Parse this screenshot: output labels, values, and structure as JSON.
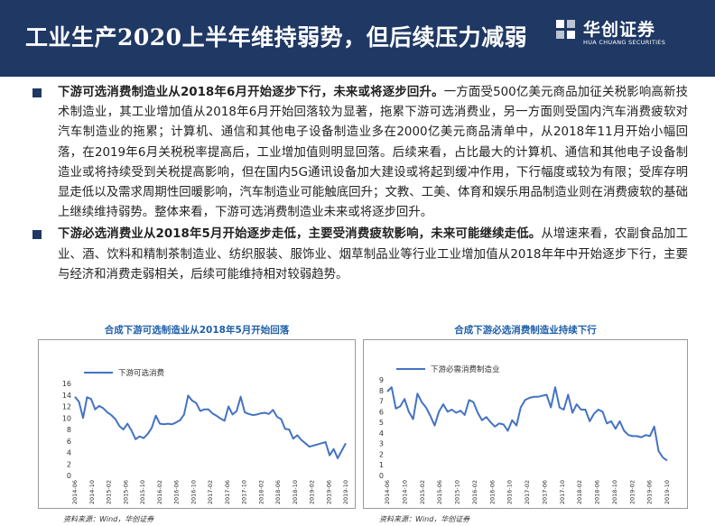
{
  "header": {
    "title": "工业生产2020上半年维持弱势，但后续压力减弱",
    "logo_cn": "华创证券",
    "logo_en": "HUA CHUANG SECURITIES",
    "background_color": "#1f3864"
  },
  "bullets": [
    {
      "bold": "下游可选消费制造业从2018年6月开始逐步下行，未来或将逐步回升。",
      "text": "一方面受500亿美元商品加征关税影响高新技术制造业，其工业增加值从2018年6月开始回落较为显著，拖累下游可选消费业，另一方面则受国内汽车消费疲软对汽车制造业的拖累；计算机、通信和其他电子设备制造业多在2000亿美元商品清单中，从2018年11月开始小幅回落，在2019年6月关税税率提高后，工业增加值则明显回落。后续来看，占比最大的计算机、通信和其他电子设备制造业或将持续受到关税提高影响，但在国内5G通讯设备加大建设或将起到缓冲作用，下行幅度或较为有限；受库存明显走低以及需求周期性回暖影响，汽车制造业可能触底回升；文教、工美、体育和娱乐用品制造业则在消费疲软的基础上继续维持弱势。整体来看，下游可选消费制造业未来或将逐步回升。"
    },
    {
      "bold": "下游必选消费业从2018年5月开始逐步走低，主要受消费疲软影响，未来可能继续走低。",
      "text": "从增速来看，农副食品加工业、酒、饮料和精制茶制造业、纺织服装、服饰业、烟草制品业等行业工业增加值从2018年年中开始逐步下行，主要与经济和消费走弱相关，后续可能维持相对较弱趋势。"
    }
  ],
  "chart_data": [
    {
      "type": "line",
      "title": "合成下游可选制造业从2018年5月开始回落",
      "series": [
        {
          "name": "下游可选消费",
          "color": "#4472c4",
          "values": [
            13.7,
            12.8,
            10.0,
            13.6,
            13.3,
            11.5,
            12.1,
            11.7,
            11.0,
            10.5,
            9.8,
            8.6,
            8.0,
            9.0,
            7.8,
            6.3,
            6.8,
            6.5,
            7.2,
            8.3,
            10.4,
            9.0,
            8.9,
            9.0,
            8.9,
            9.2,
            9.6,
            10.6,
            13.9,
            13.0,
            12.6,
            11.2,
            11.5,
            11.5,
            10.8,
            10.4,
            9.9,
            9.5,
            12.0,
            10.6,
            11.2,
            13.7,
            11.0,
            10.7,
            10.5,
            10.6,
            10.8,
            10.9,
            10.7,
            11.4,
            10.2,
            9.8,
            8.1,
            8.0,
            6.4,
            7.0,
            6.2,
            5.6,
            5.0,
            5.2,
            5.4,
            5.6,
            5.8,
            3.5,
            4.6,
            3.0,
            4.3,
            5.6
          ]
        }
      ],
      "x_ticks": [
        "2014-06",
        "2014-10",
        "2015-02",
        "2015-06",
        "2015-10",
        "2016-02",
        "2016-06",
        "2016-10",
        "2017-02",
        "2017-06",
        "2017-10",
        "2018-02",
        "2018-06",
        "2018-10",
        "2019-02",
        "2019-06",
        "2019-10"
      ],
      "y_ticks": [
        "0",
        "2",
        "4",
        "6",
        "8",
        "10",
        "12",
        "14",
        "16"
      ],
      "ylim": [
        0,
        16
      ],
      "xlabel": "",
      "ylabel": "",
      "legend_position": "top-left",
      "source": "资料来源：Wind，华创证券"
    },
    {
      "type": "line",
      "title": "合成下游必选消费制造业持续下行",
      "series": [
        {
          "name": "下游必需消费制造业",
          "color": "#4472c4",
          "values": [
            7.9,
            8.3,
            6.3,
            6.5,
            7.2,
            6.0,
            5.3,
            7.7,
            6.9,
            6.4,
            5.6,
            4.7,
            6.0,
            6.7,
            6.0,
            6.2,
            5.9,
            6.1,
            5.7,
            7.1,
            6.9,
            5.9,
            5.2,
            5.5,
            5.0,
            4.6,
            4.9,
            4.8,
            4.2,
            5.2,
            4.7,
            6.4,
            7.1,
            7.3,
            7.4,
            7.4,
            7.5,
            7.6,
            6.4,
            8.3,
            6.4,
            6.2,
            7.6,
            5.9,
            6.7,
            6.2,
            6.2,
            5.1,
            5.8,
            6.2,
            6.0,
            4.9,
            5.1,
            4.4,
            5.1,
            4.2,
            3.8,
            3.7,
            3.7,
            3.6,
            3.8,
            3.7,
            4.6,
            2.3,
            1.7,
            1.4
          ]
        }
      ],
      "x_ticks": [
        "2014-06",
        "2014-10",
        "2015-02",
        "2015-06",
        "2015-10",
        "2016-02",
        "2016-06",
        "2016-10",
        "2017-02",
        "2017-06",
        "2017-10",
        "2018-02",
        "2018-06",
        "2018-10",
        "2019-02",
        "2019-06",
        "2019-10"
      ],
      "y_ticks": [
        "0",
        "1",
        "2",
        "3",
        "4",
        "5",
        "6",
        "7",
        "8",
        "9"
      ],
      "ylim": [
        0,
        9
      ],
      "xlabel": "",
      "ylabel": "",
      "legend_position": "top-left",
      "source": "资料来源：Wind，华创证券"
    }
  ]
}
